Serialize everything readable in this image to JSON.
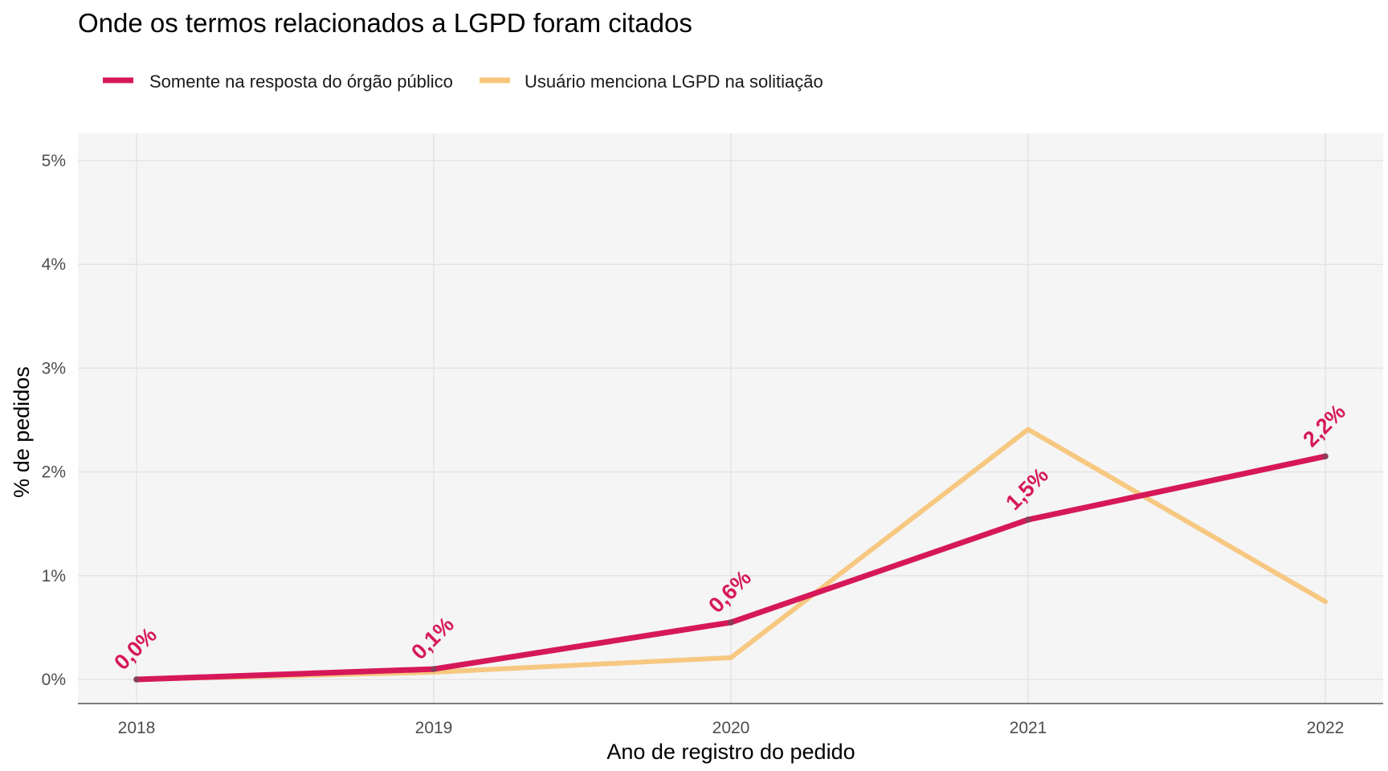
{
  "chart_data": {
    "type": "line",
    "title": "Onde os termos relacionados a LGPD foram citados",
    "xlabel": "Ano de registro do pedido",
    "ylabel": "% de pedidos",
    "x": [
      2018,
      2019,
      2020,
      2021,
      2022
    ],
    "x_tick_labels": [
      "2018",
      "2019",
      "2020",
      "2021",
      "2022"
    ],
    "ylim": [
      0,
      5
    ],
    "y_ticks": [
      0,
      1,
      2,
      3,
      4,
      5
    ],
    "y_tick_labels": [
      "0%",
      "1%",
      "2%",
      "3%",
      "4%",
      "5%"
    ],
    "grid": true,
    "legend_position": "top-left",
    "series": [
      {
        "name": "Somente na resposta do órgão público",
        "values": [
          0.0,
          0.1,
          0.55,
          1.54,
          2.15
        ],
        "labels": [
          "0,0%",
          "0,1%",
          "0,6%",
          "1,5%",
          "2,2%"
        ],
        "color": "#d6185a"
      },
      {
        "name": "Usuário menciona LGPD na solitiação",
        "values": [
          0.0,
          0.07,
          0.21,
          2.41,
          0.75
        ],
        "color": "#f7c57a"
      }
    ],
    "background_color": "#f5f5f5",
    "grid_color": "#e4e4e4"
  }
}
